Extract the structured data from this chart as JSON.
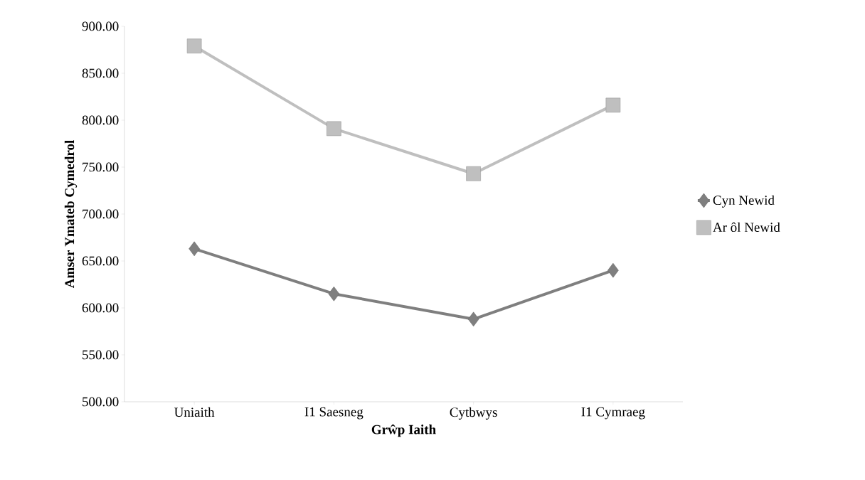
{
  "chart_data": {
    "type": "line",
    "xlabel": "Grŵp Iaith",
    "ylabel": "Amser Ymateb Cymedrol",
    "categories": [
      "Uniaith",
      "I1 Saesneg",
      "Cytbwys",
      "I1 Cymraeg"
    ],
    "series": [
      {
        "name": "Cyn Newid",
        "color": "#7f7f7f",
        "values": [
          663,
          615,
          588,
          640
        ],
        "marker": "diamond"
      },
      {
        "name": "Ar ôl Newid",
        "color": "#bfbfbf",
        "values": [
          879,
          791,
          743,
          816
        ],
        "marker": "square"
      }
    ],
    "ylim": [
      500,
      900
    ],
    "yticks": [
      {
        "value": 500,
        "label": "500.00"
      },
      {
        "value": 550,
        "label": "550.00"
      },
      {
        "value": 600,
        "label": "600.00"
      },
      {
        "value": 650,
        "label": "650.00"
      },
      {
        "value": 700,
        "label": "700.00"
      },
      {
        "value": 750,
        "label": "750.00"
      },
      {
        "value": 800,
        "label": "800.00"
      },
      {
        "value": 850,
        "label": "850.00"
      },
      {
        "value": 900,
        "label": "900.00"
      }
    ],
    "legend": "right",
    "grid": false,
    "line_style": "solid"
  }
}
